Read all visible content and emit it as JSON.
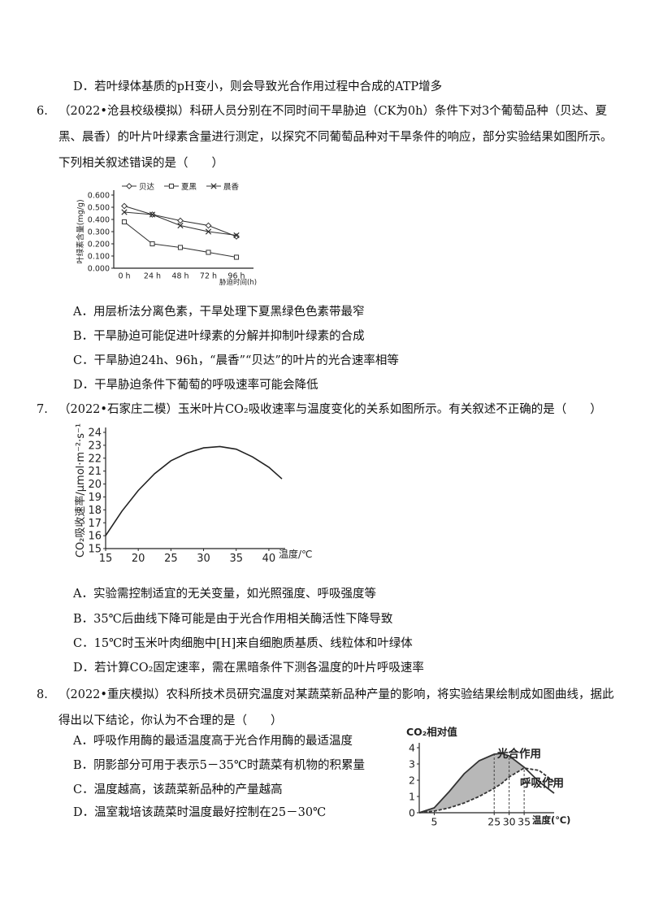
{
  "prev_option": {
    "label": "D．",
    "text": "若叶绿体基质的pH变小，则会导致光合作用过程中合成的ATP增多"
  },
  "questions": [
    {
      "number": "6.",
      "stem": "（2022•沧县校级模拟）科研人员分别在不同时间干旱胁迫（CK为0h）条件下对3个葡萄品种（贝达、夏黑、晨香）的叶片叶绿素含量进行测定，以探究不同葡萄品种对干旱条件的响应，部分实验结果如图所示。下列相关叙述错误的是（　　）",
      "figure": {
        "type": "line",
        "y_label": "叶绿素含量(mg/g)",
        "x_label": "胁迫时间(h)",
        "categories": [
          "0 h",
          "24 h",
          "48 h",
          "72 h",
          "96 h"
        ],
        "ylim": [
          0,
          0.6
        ],
        "yticks": [
          {
            "value": 0,
            "label": "0.000"
          },
          {
            "value": 0.1,
            "label": "0.100"
          },
          {
            "value": 0.2,
            "label": "0.200"
          },
          {
            "value": 0.3,
            "label": "0.300"
          },
          {
            "value": 0.4,
            "label": "0.400"
          },
          {
            "value": 0.5,
            "label": "0.500"
          },
          {
            "value": 0.6,
            "label": "0.600"
          }
        ],
        "series": [
          {
            "name": "贝达",
            "marker": "diamond",
            "color": "#333333",
            "values": [
              0.51,
              0.44,
              0.39,
              0.35,
              0.26
            ]
          },
          {
            "name": "夏黑",
            "marker": "square",
            "color": "#333333",
            "values": [
              0.38,
              0.2,
              0.17,
              0.13,
              0.09
            ]
          },
          {
            "name": "晨香",
            "marker": "cross",
            "color": "#333333",
            "values": [
              0.46,
              0.44,
              0.35,
              0.3,
              0.27
            ]
          }
        ]
      },
      "options": [
        {
          "label": "A．",
          "text": "用层析法分离色素，干旱处理下夏黑绿色色素带最窄"
        },
        {
          "label": "B．",
          "text": "干旱胁迫可能促进叶绿素的分解并抑制叶绿素的合成"
        },
        {
          "label": "C．",
          "text": "干旱胁迫24h、96h，“晨香”“贝达”的叶片的光合速率相等"
        },
        {
          "label": "D．",
          "text": "干旱胁迫条件下葡萄的呼吸速率可能会降低"
        }
      ]
    },
    {
      "number": "7.",
      "stem": "（2022•石家庄二模）玉米叶片CO₂吸收速率与温度变化的关系如图所示。有关叙述不正确的是（　　）",
      "figure": {
        "type": "line",
        "y_label": "CO₂吸收速率/μmol·m⁻²·s⁻¹",
        "x_label": "温度/℃",
        "x": [
          15,
          17.5,
          20,
          22.5,
          25,
          27.5,
          30,
          32.5,
          35,
          37.5,
          40,
          42
        ],
        "values": [
          16,
          17.9,
          19.5,
          20.8,
          21.8,
          22.4,
          22.8,
          22.9,
          22.7,
          22.1,
          21.3,
          20.4
        ],
        "color": "#222222",
        "xlim": [
          15,
          42.5
        ],
        "ylim": [
          15,
          24
        ],
        "xticks": [
          15,
          20,
          25,
          30,
          35,
          40
        ],
        "yticks": [
          15,
          16,
          17,
          18,
          19,
          20,
          21,
          22,
          23,
          24
        ]
      },
      "options": [
        {
          "label": "A．",
          "text": "实验需控制适宜的无关变量，如光照强度、呼吸强度等"
        },
        {
          "label": "B．",
          "text": "35℃后曲线下降可能是由于光合作用相关酶活性下降导致"
        },
        {
          "label": "C．",
          "text": "15℃时玉米叶肉细胞中[H]来自细胞质基质、线粒体和叶绿体"
        },
        {
          "label": "D．",
          "text": "若计算CO₂固定速率，需在黑暗条件下测各温度的叶片呼吸速率"
        }
      ]
    },
    {
      "number": "8.",
      "stem": "（2022•重庆模拟）农科所技术员研究温度对某蔬菜新品种产量的影响，将实验结果绘制成如图曲线，据此得出以下结论，你认为不合理的是（　　）",
      "figure": {
        "type": "area",
        "y_label": "CO₂相对值",
        "x_label": "温度(℃)",
        "x": [
          0,
          5,
          10,
          15,
          20,
          25,
          27.5,
          30,
          35,
          40,
          45
        ],
        "series": [
          {
            "name": "光合作用",
            "color": "#333333",
            "values": [
              0,
              0.3,
              1.3,
              2.4,
              3.2,
              3.6,
              3.65,
              3.5,
              2.8,
              1.9,
              1.2
            ]
          },
          {
            "name": "呼吸作用",
            "color": "#333333",
            "values": [
              0,
              0.1,
              0.3,
              0.6,
              1.0,
              1.5,
              1.8,
              2.2,
              2.75,
              2.6,
              1.9
            ]
          }
        ],
        "xlim": [
          0,
          45
        ],
        "ylim": [
          0,
          4
        ],
        "xticks": [
          5,
          25,
          30,
          35
        ],
        "yticks": [
          0,
          1,
          2,
          3,
          4
        ]
      },
      "options": [
        {
          "label": "A．",
          "text": "呼吸作用酶的最适温度高于光合作用酶的最适温度"
        },
        {
          "label": "B．",
          "text": "阴影部分可用于表示5－35℃时蔬菜有机物的积累量"
        },
        {
          "label": "C．",
          "text": "温度越高，该蔬菜新品种的产量越高"
        },
        {
          "label": "D．",
          "text": "温室栽培该蔬菜时温度最好控制在25－30℃"
        }
      ]
    }
  ]
}
